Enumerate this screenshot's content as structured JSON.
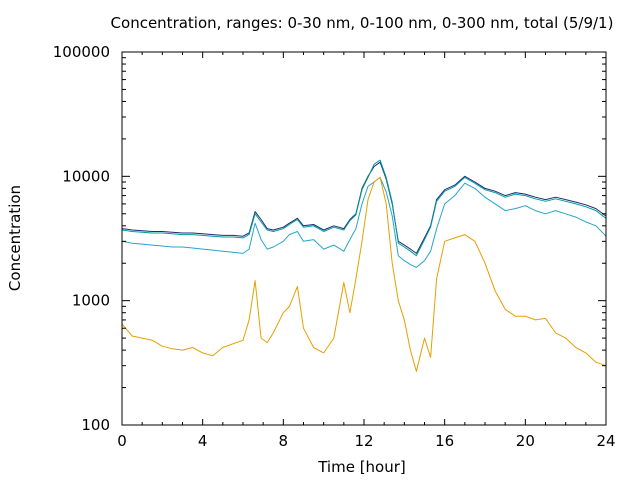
{
  "chart_data": {
    "type": "line",
    "title": "Concentration, ranges: 0-30 nm, 0-100 nm, 0-300 nm, total (5/9/1)",
    "xlabel": "Time [hour]",
    "ylabel": "Concentration",
    "xlim": [
      0,
      24
    ],
    "ylim": [
      100,
      100000
    ],
    "yscale": "log",
    "grid": false,
    "legend": "none",
    "xticks": [
      0,
      4,
      8,
      12,
      16,
      20,
      24
    ],
    "xtick_labels": [
      "0",
      "4",
      "8",
      "12",
      "16",
      "20",
      "24"
    ],
    "yticks": [
      100,
      1000,
      10000,
      100000
    ],
    "ytick_labels": [
      "100",
      "1000",
      "10000",
      "100000"
    ],
    "series": [
      {
        "color": "#1f2a7a",
        "x": [
          0,
          0.5,
          1,
          1.5,
          2,
          2.5,
          3,
          3.5,
          4,
          4.5,
          5,
          5.5,
          6,
          6.3,
          6.6,
          6.9,
          7.2,
          7.5,
          8,
          8.3,
          8.7,
          9,
          9.5,
          10,
          10.5,
          11,
          11.3,
          11.6,
          11.9,
          12.2,
          12.5,
          12.8,
          13.1,
          13.4,
          13.7,
          14,
          14.3,
          14.6,
          15,
          15.3,
          15.6,
          16,
          16.5,
          17,
          17.5,
          18,
          18.5,
          19,
          19.5,
          20,
          20.5,
          21,
          21.5,
          22,
          22.5,
          23,
          23.5,
          24
        ],
        "y": [
          3800,
          3700,
          3650,
          3600,
          3600,
          3550,
          3500,
          3500,
          3450,
          3400,
          3350,
          3350,
          3300,
          3500,
          5200,
          4500,
          3800,
          3700,
          3900,
          4200,
          4600,
          4000,
          4100,
          3700,
          4000,
          3800,
          4500,
          5000,
          8000,
          10000,
          12000,
          13000,
          9500,
          6000,
          3000,
          2800,
          2600,
          2400,
          3200,
          4000,
          6500,
          7800,
          8500,
          10000,
          9000,
          8000,
          7600,
          7000,
          7400,
          7200,
          6800,
          6500,
          6800,
          6500,
          6200,
          5900,
          5500,
          4800
        ]
      },
      {
        "color": "#009c9c",
        "x": [
          0,
          0.5,
          1,
          1.5,
          2,
          2.5,
          3,
          3.5,
          4,
          4.5,
          5,
          5.5,
          6,
          6.3,
          6.6,
          6.9,
          7.2,
          7.5,
          8,
          8.3,
          8.7,
          9,
          9.5,
          10,
          10.5,
          11,
          11.3,
          11.6,
          11.9,
          12.2,
          12.5,
          12.8,
          13.1,
          13.4,
          13.7,
          14,
          14.3,
          14.6,
          15,
          15.3,
          15.6,
          16,
          16.5,
          17,
          17.5,
          18,
          18.5,
          19,
          19.5,
          20,
          20.5,
          21,
          21.5,
          22,
          22.5,
          23,
          23.5,
          24
        ],
        "y": [
          3700,
          3600,
          3550,
          3500,
          3500,
          3450,
          3400,
          3400,
          3350,
          3300,
          3250,
          3250,
          3200,
          3400,
          5000,
          4300,
          3700,
          3600,
          3800,
          4100,
          4500,
          3900,
          4000,
          3600,
          3900,
          3700,
          4400,
          4900,
          7800,
          9800,
          12500,
          13500,
          9800,
          6200,
          2900,
          2700,
          2500,
          2300,
          3100,
          3900,
          6300,
          7600,
          8300,
          9800,
          8800,
          7800,
          7400,
          6800,
          7200,
          7000,
          6600,
          6300,
          6600,
          6300,
          6000,
          5700,
          5300,
          4600
        ]
      },
      {
        "color": "#27a4c8",
        "x": [
          0,
          0.5,
          1,
          1.5,
          2,
          2.5,
          3,
          3.5,
          4,
          4.5,
          5,
          5.5,
          6,
          6.3,
          6.6,
          6.9,
          7.2,
          7.5,
          8,
          8.3,
          8.7,
          9,
          9.5,
          10,
          10.5,
          11,
          11.3,
          11.6,
          11.9,
          12.2,
          12.5,
          12.8,
          13.1,
          13.4,
          13.7,
          14,
          14.3,
          14.6,
          15,
          15.3,
          15.6,
          16,
          16.5,
          17,
          17.5,
          18,
          18.5,
          19,
          19.5,
          20,
          20.5,
          21,
          21.5,
          22,
          22.5,
          23,
          23.5,
          24
        ],
        "y": [
          3000,
          2900,
          2850,
          2800,
          2750,
          2700,
          2700,
          2650,
          2600,
          2550,
          2500,
          2450,
          2400,
          2600,
          4200,
          3100,
          2600,
          2700,
          3000,
          3400,
          3600,
          3000,
          3100,
          2600,
          2800,
          2500,
          3100,
          3800,
          6000,
          8300,
          9000,
          9800,
          7500,
          4800,
          2300,
          2100,
          1950,
          1850,
          2100,
          2500,
          3800,
          6000,
          7000,
          8800,
          8000,
          6800,
          6000,
          5300,
          5500,
          5800,
          5300,
          5000,
          5300,
          5000,
          4700,
          4300,
          4000,
          3300
        ]
      },
      {
        "color": "#e69f00",
        "x": [
          0,
          0.5,
          1,
          1.5,
          2,
          2.5,
          3,
          3.5,
          4,
          4.5,
          5,
          5.5,
          6,
          6.3,
          6.6,
          6.9,
          7.2,
          7.5,
          8,
          8.3,
          8.7,
          9,
          9.5,
          10,
          10.5,
          11,
          11.3,
          11.6,
          11.9,
          12.2,
          12.5,
          12.8,
          13.1,
          13.4,
          13.7,
          14,
          14.3,
          14.6,
          15,
          15.3,
          15.6,
          16,
          16.5,
          17,
          17.5,
          18,
          18.5,
          19,
          19.5,
          20,
          20.5,
          21,
          21.5,
          22,
          22.5,
          23,
          23.5,
          24
        ],
        "y": [
          650,
          520,
          500,
          480,
          430,
          410,
          400,
          420,
          380,
          360,
          420,
          450,
          480,
          700,
          1450,
          500,
          460,
          550,
          800,
          900,
          1300,
          600,
          420,
          380,
          500,
          1400,
          800,
          1500,
          3000,
          6500,
          9000,
          9800,
          6000,
          2000,
          1000,
          700,
          400,
          270,
          500,
          350,
          1500,
          3000,
          3200,
          3400,
          3000,
          2000,
          1200,
          850,
          750,
          750,
          700,
          720,
          550,
          500,
          420,
          380,
          320,
          300
        ]
      }
    ]
  }
}
